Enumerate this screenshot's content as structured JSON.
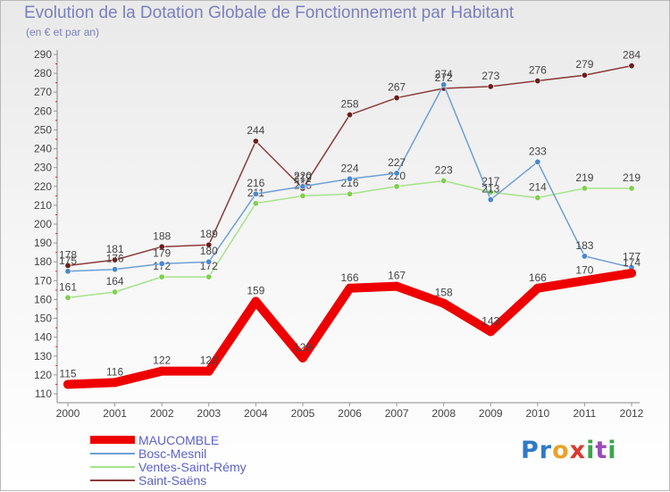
{
  "title": "Evolution de la Dotation Globale de Fonctionnement par Habitant",
  "subtitle": "(en € et par an)",
  "logo_text": "Proxiti",
  "chart_data": {
    "type": "line",
    "title": "Evolution de la Dotation Globale de Fonctionnement par Habitant",
    "ylabel": "(en € et par an)",
    "xlabel": "",
    "ylim": [
      110,
      290
    ],
    "ytick_step": 10,
    "grid": false,
    "legend_position": "bottom-left",
    "categories": [
      "2000",
      "2001",
      "2002",
      "2003",
      "2004",
      "2005",
      "2006",
      "2007",
      "2008",
      "2009",
      "2010",
      "2011",
      "2012"
    ],
    "series": [
      {
        "name": "MAUCOMBLE",
        "color": "#ee0000",
        "width": 10,
        "marker": "#ee0000",
        "values": [
          115,
          116,
          122,
          122,
          159,
          129,
          166,
          167,
          158,
          143,
          166,
          170,
          174
        ]
      },
      {
        "name": "Bosc-Mesnil",
        "color": "#6d9fd6",
        "width": 1.5,
        "marker": "#4b87cf",
        "values": [
          175,
          176,
          179,
          180,
          216,
          220,
          224,
          227,
          274,
          213,
          233,
          183,
          177
        ]
      },
      {
        "name": "Ventes-Saint-Rémy",
        "color": "#a6e38a",
        "width": 1.5,
        "marker": "#7fcf4f",
        "values": [
          161,
          164,
          172,
          172,
          211,
          215,
          216,
          220,
          223,
          217,
          214,
          219,
          219
        ]
      },
      {
        "name": "Saint-Saëns",
        "color": "#8c3a3a",
        "width": 1.5,
        "marker": "#6b1e1e",
        "values": [
          178,
          181,
          188,
          189,
          244,
          219,
          258,
          267,
          272,
          273,
          276,
          279,
          284
        ]
      }
    ]
  }
}
